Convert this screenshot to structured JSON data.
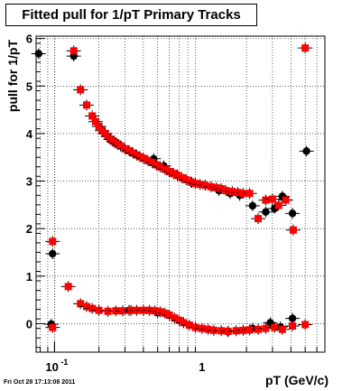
{
  "title": "Fitted pull for 1/pT  Primary Tracks",
  "timestamp": "Fri Oct 28 17:13:08 2011",
  "chart_data": {
    "type": "scatter",
    "title": "Fitted pull for 1/pT  Primary Tracks",
    "xlabel": "pT (GeV/c)",
    "ylabel": "pull for 1/pT",
    "x_scale": "log",
    "xlim": [
      0.075,
      6.8
    ],
    "ylim": [
      -0.6,
      6.05
    ],
    "grid": true,
    "y_ticks": [
      "0",
      "1",
      "2",
      "3",
      "4",
      "5",
      "6"
    ],
    "x_ticks": [
      "10",
      "-1",
      "1"
    ],
    "series": [
      {
        "color": "#000000",
        "points": [
          [
            0.078,
            5.68
          ],
          [
            0.097,
            1.47
          ],
          [
            0.135,
            5.63
          ],
          [
            0.095,
            -0.01
          ],
          [
            0.47,
            3.47
          ],
          [
            0.55,
            3.32
          ],
          [
            0.68,
            3.13
          ],
          [
            0.85,
            2.97
          ],
          [
            1.3,
            2.8
          ],
          [
            1.55,
            2.74
          ],
          [
            1.8,
            2.7
          ],
          [
            2.2,
            2.48
          ],
          [
            2.7,
            2.35
          ],
          [
            3.1,
            2.42
          ],
          [
            3.5,
            2.68
          ],
          [
            4.1,
            2.32
          ],
          [
            5.1,
            3.63
          ],
          [
            0.32,
            0.28
          ],
          [
            0.5,
            0.23
          ],
          [
            1.5,
            -0.17
          ],
          [
            2.2,
            -0.1
          ],
          [
            2.9,
            0.02
          ],
          [
            3.4,
            -0.07
          ],
          [
            4.1,
            0.11
          ]
        ]
      },
      {
        "color": "#ff0000",
        "points": [
          [
            0.097,
            1.73
          ],
          [
            0.124,
            0.78
          ],
          [
            0.135,
            5.74
          ],
          [
            0.15,
            4.92
          ],
          [
            0.165,
            4.6
          ],
          [
            0.18,
            4.37
          ],
          [
            0.19,
            4.25
          ],
          [
            0.2,
            4.15
          ],
          [
            0.21,
            4.06
          ],
          [
            0.22,
            4.0
          ],
          [
            0.23,
            3.94
          ],
          [
            0.24,
            3.88
          ],
          [
            0.25,
            3.84
          ],
          [
            0.26,
            3.8
          ],
          [
            0.27,
            3.77
          ],
          [
            0.28,
            3.74
          ],
          [
            0.3,
            3.68
          ],
          [
            0.32,
            3.64
          ],
          [
            0.34,
            3.59
          ],
          [
            0.36,
            3.55
          ],
          [
            0.38,
            3.51
          ],
          [
            0.4,
            3.48
          ],
          [
            0.43,
            3.43
          ],
          [
            0.46,
            3.39
          ],
          [
            0.49,
            3.34
          ],
          [
            0.52,
            3.3
          ],
          [
            0.56,
            3.25
          ],
          [
            0.6,
            3.2
          ],
          [
            0.64,
            3.16
          ],
          [
            0.68,
            3.12
          ],
          [
            0.73,
            3.07
          ],
          [
            0.78,
            3.03
          ],
          [
            0.84,
            2.98
          ],
          [
            0.9,
            2.95
          ],
          [
            0.97,
            2.93
          ],
          [
            1.05,
            2.91
          ],
          [
            1.15,
            2.88
          ],
          [
            1.25,
            2.86
          ],
          [
            1.35,
            2.84
          ],
          [
            1.45,
            2.8
          ],
          [
            1.6,
            2.78
          ],
          [
            1.75,
            2.76
          ],
          [
            1.9,
            2.74
          ],
          [
            2.1,
            2.74
          ],
          [
            2.4,
            2.21
          ],
          [
            2.7,
            2.6
          ],
          [
            3.0,
            2.62
          ],
          [
            3.3,
            2.49
          ],
          [
            3.7,
            2.6
          ],
          [
            4.15,
            1.97
          ],
          [
            5.0,
            5.8
          ],
          [
            0.15,
            0.42
          ],
          [
            0.165,
            0.36
          ],
          [
            0.18,
            0.32
          ],
          [
            0.2,
            0.28
          ],
          [
            0.23,
            0.26
          ],
          [
            0.26,
            0.27
          ],
          [
            0.29,
            0.27
          ],
          [
            0.33,
            0.28
          ],
          [
            0.36,
            0.28
          ],
          [
            0.4,
            0.28
          ],
          [
            0.44,
            0.28
          ],
          [
            0.48,
            0.27
          ],
          [
            0.52,
            0.25
          ],
          [
            0.56,
            0.22
          ],
          [
            0.6,
            0.18
          ],
          [
            0.65,
            0.12
          ],
          [
            0.7,
            0.07
          ],
          [
            0.75,
            0.02
          ],
          [
            0.82,
            -0.03
          ],
          [
            0.9,
            -0.08
          ],
          [
            1.0,
            -0.1
          ],
          [
            1.1,
            -0.12
          ],
          [
            1.2,
            -0.14
          ],
          [
            1.35,
            -0.15
          ],
          [
            1.5,
            -0.16
          ],
          [
            1.7,
            -0.15
          ],
          [
            1.9,
            -0.14
          ],
          [
            2.1,
            -0.13
          ],
          [
            2.4,
            -0.12
          ],
          [
            2.7,
            -0.1
          ],
          [
            3.1,
            -0.08
          ],
          [
            3.5,
            -0.12
          ],
          [
            4.1,
            -0.05
          ],
          [
            5.0,
            -0.02
          ],
          [
            0.097,
            -0.08
          ]
        ]
      }
    ]
  }
}
